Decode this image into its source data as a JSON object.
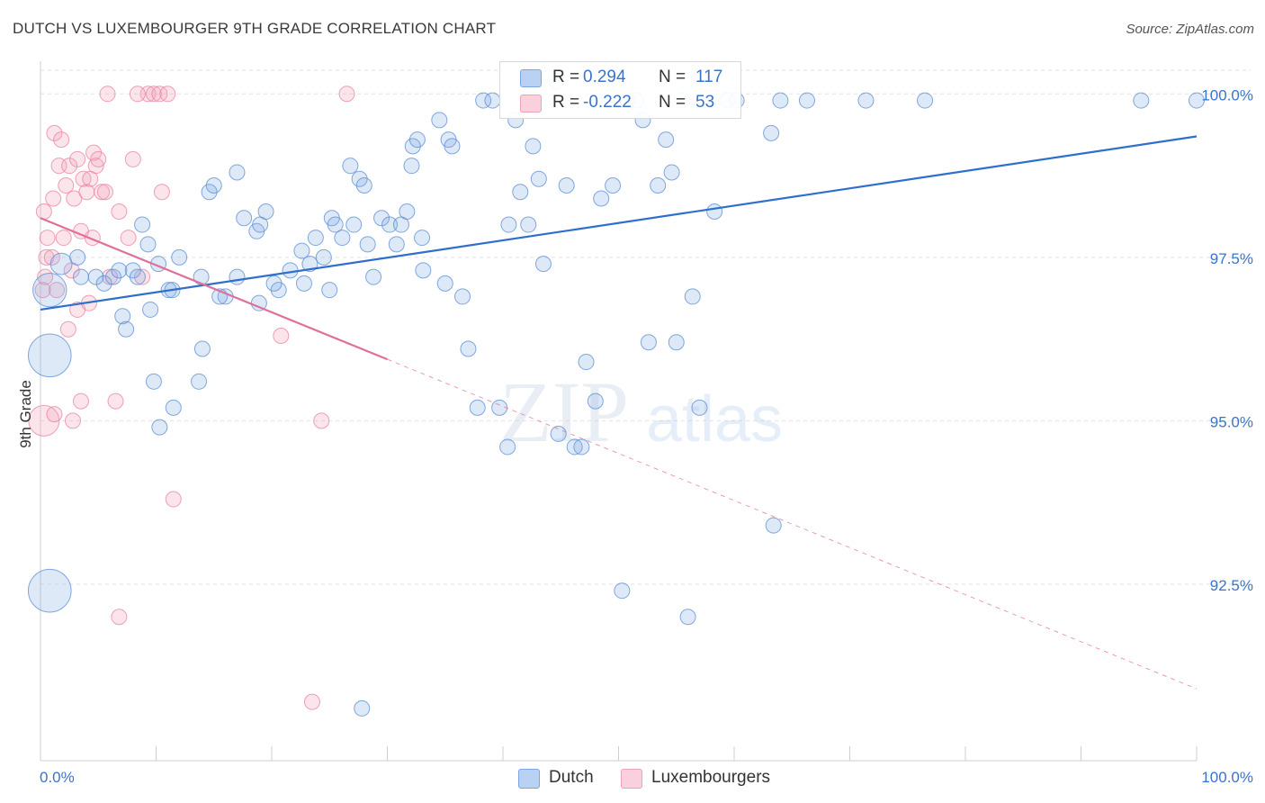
{
  "title": "DUTCH VS LUXEMBOURGER 9TH GRADE CORRELATION CHART",
  "source": "Source: ZipAtlas.com",
  "watermark": {
    "zip": "ZIP",
    "atlas": "atlas"
  },
  "legend": {
    "rows": [
      {
        "r_label": "R =",
        "r_value": "0.294",
        "n_label": "N =",
        "n_value": "117"
      },
      {
        "r_label": "R =",
        "r_value": "-0.222",
        "n_label": "N =",
        "n_value": "53"
      }
    ]
  },
  "bottom_legend": {
    "dutch": "Dutch",
    "luxembourgers": "Luxembourgers"
  },
  "colors": {
    "dutch": "#7aa7e3",
    "dutch_line": "#2f6fcc",
    "lux": "#f0a0b8",
    "lux_line": "#e0709a",
    "axis_text": "#3a74c9"
  },
  "chart_data": {
    "type": "scatter",
    "title": "DUTCH VS LUXEMBOURGER 9TH GRADE CORRELATION CHART",
    "xlabel": "",
    "ylabel": "9th Grade",
    "xlim": [
      0,
      100
    ],
    "ylim": [
      89.8,
      100.5
    ],
    "x_tick_labels": [
      "0.0%",
      "100.0%"
    ],
    "y_ticks": [
      {
        "value": 100.0,
        "label": "100.0%"
      },
      {
        "value": 97.5,
        "label": "97.5%"
      },
      {
        "value": 95.0,
        "label": "95.0%"
      },
      {
        "value": 92.5,
        "label": "92.5%"
      }
    ],
    "series": [
      {
        "name": "Dutch",
        "r": 0.294,
        "n": 117,
        "trend": {
          "x": [
            0,
            100
          ],
          "y": [
            96.7,
            99.35
          ],
          "solid_to": 100
        },
        "points": [
          [
            0.8,
            97.0,
            2.2
          ],
          [
            0.8,
            96.0,
            2.8
          ],
          [
            0.8,
            92.4,
            2.8
          ],
          [
            1.8,
            97.4,
            1.4
          ],
          [
            3.2,
            97.5,
            1
          ],
          [
            3.5,
            97.2,
            1
          ],
          [
            4.8,
            97.2,
            1
          ],
          [
            5.5,
            97.1,
            1
          ],
          [
            6.3,
            97.2,
            1
          ],
          [
            6.8,
            97.3,
            1
          ],
          [
            8.0,
            97.3,
            1
          ],
          [
            9.5,
            96.7,
            1
          ],
          [
            7.1,
            96.6,
            1
          ],
          [
            7.4,
            96.4,
            1
          ],
          [
            8.4,
            97.2,
            1
          ],
          [
            8.8,
            98.0,
            1
          ],
          [
            9.3,
            97.7,
            1
          ],
          [
            10.2,
            97.4,
            1
          ],
          [
            11.1,
            97.0,
            1
          ],
          [
            12.0,
            97.5,
            1
          ],
          [
            11.4,
            97.0,
            1
          ],
          [
            13.9,
            97.2,
            1
          ],
          [
            14.6,
            98.5,
            1
          ],
          [
            15.0,
            98.6,
            1
          ],
          [
            17.0,
            98.8,
            1
          ],
          [
            18.7,
            97.9,
            1
          ],
          [
            19.0,
            98.0,
            1
          ],
          [
            19.5,
            98.2,
            1
          ],
          [
            17.6,
            98.1,
            1
          ],
          [
            17.0,
            97.2,
            1
          ],
          [
            16.0,
            96.9,
            1
          ],
          [
            15.5,
            96.9,
            1
          ],
          [
            14.0,
            96.1,
            1
          ],
          [
            13.7,
            95.6,
            1
          ],
          [
            11.5,
            95.2,
            1
          ],
          [
            10.3,
            94.9,
            1
          ],
          [
            9.8,
            95.6,
            1
          ],
          [
            18.9,
            96.8,
            1
          ],
          [
            20.6,
            97.0,
            1
          ],
          [
            20.2,
            97.1,
            1
          ],
          [
            21.6,
            97.3,
            1
          ],
          [
            22.8,
            97.1,
            1
          ],
          [
            23.3,
            97.4,
            1
          ],
          [
            22.6,
            97.6,
            1
          ],
          [
            23.8,
            97.8,
            1
          ],
          [
            25.2,
            98.1,
            1
          ],
          [
            24.5,
            97.5,
            1
          ],
          [
            25.5,
            98.0,
            1
          ],
          [
            25.0,
            97.0,
            1
          ],
          [
            26.1,
            97.8,
            1
          ],
          [
            26.8,
            98.9,
            1
          ],
          [
            27.6,
            98.7,
            1
          ],
          [
            28.0,
            98.6,
            1
          ],
          [
            27.1,
            98.0,
            1
          ],
          [
            28.3,
            97.7,
            1
          ],
          [
            28.8,
            97.2,
            1
          ],
          [
            29.5,
            98.1,
            1
          ],
          [
            30.8,
            97.7,
            1
          ],
          [
            30.2,
            98.0,
            1
          ],
          [
            31.2,
            98.0,
            1
          ],
          [
            31.7,
            98.2,
            1
          ],
          [
            32.2,
            99.2,
            1
          ],
          [
            32.6,
            99.3,
            1
          ],
          [
            32.1,
            98.9,
            1
          ],
          [
            33.0,
            97.8,
            1
          ],
          [
            33.1,
            97.3,
            1
          ],
          [
            34.5,
            99.6,
            1
          ],
          [
            35.3,
            99.3,
            1
          ],
          [
            35.6,
            99.2,
            1
          ],
          [
            35.0,
            97.1,
            1
          ],
          [
            36.5,
            96.9,
            1
          ],
          [
            37.0,
            96.1,
            1
          ],
          [
            37.8,
            95.2,
            1
          ],
          [
            38.3,
            99.9,
            1
          ],
          [
            39.1,
            99.9,
            1
          ],
          [
            39.7,
            95.2,
            1
          ],
          [
            40.4,
            94.6,
            1
          ],
          [
            40.5,
            98.0,
            1
          ],
          [
            41.1,
            99.6,
            1
          ],
          [
            41.5,
            98.5,
            1
          ],
          [
            42.2,
            98.0,
            1
          ],
          [
            42.6,
            99.2,
            1
          ],
          [
            43.1,
            98.7,
            1
          ],
          [
            43.5,
            97.4,
            1
          ],
          [
            44.8,
            94.8,
            1
          ],
          [
            45.5,
            98.6,
            1
          ],
          [
            46.2,
            94.6,
            1
          ],
          [
            46.8,
            94.6,
            1
          ],
          [
            47.2,
            95.9,
            1
          ],
          [
            48.0,
            95.3,
            1
          ],
          [
            48.5,
            98.4,
            1
          ],
          [
            49.5,
            98.6,
            1
          ],
          [
            50.3,
            92.4,
            1
          ],
          [
            50.8,
            99.9,
            1
          ],
          [
            51.5,
            99.9,
            1
          ],
          [
            52.1,
            99.6,
            1
          ],
          [
            52.6,
            96.2,
            1
          ],
          [
            53.4,
            98.6,
            1
          ],
          [
            54.1,
            99.3,
            1
          ],
          [
            54.6,
            98.8,
            1
          ],
          [
            55.0,
            96.2,
            1
          ],
          [
            55.5,
            99.9,
            1
          ],
          [
            56.0,
            92.0,
            1
          ],
          [
            56.4,
            96.9,
            1
          ],
          [
            57.0,
            95.2,
            1
          ],
          [
            58.3,
            98.2,
            1
          ],
          [
            59.4,
            99.9,
            1
          ],
          [
            60.2,
            99.9,
            1
          ],
          [
            63.4,
            93.4,
            1
          ],
          [
            63.2,
            99.4,
            1
          ],
          [
            64.0,
            99.9,
            1
          ],
          [
            66.3,
            99.9,
            1
          ],
          [
            71.4,
            99.9,
            1
          ],
          [
            76.5,
            99.9,
            1
          ],
          [
            27.8,
            90.6,
            1
          ],
          [
            44.6,
            100.2,
            1
          ],
          [
            95.2,
            99.9,
            1
          ],
          [
            100.0,
            99.9,
            1
          ]
        ]
      },
      {
        "name": "Luxembourgers",
        "r": -0.222,
        "n": 53,
        "trend": {
          "x": [
            0,
            100
          ],
          "y": [
            98.1,
            90.9
          ],
          "solid_to": 30
        },
        "points": [
          [
            0.2,
            97.0,
            1
          ],
          [
            0.3,
            98.2,
            1
          ],
          [
            0.5,
            97.5,
            1
          ],
          [
            0.4,
            97.2,
            1
          ],
          [
            0.3,
            95.0,
            2
          ],
          [
            1.2,
            95.1,
            1
          ],
          [
            1.1,
            98.4,
            1
          ],
          [
            1.2,
            99.4,
            1
          ],
          [
            1.6,
            98.9,
            1
          ],
          [
            1.8,
            99.3,
            1
          ],
          [
            2.0,
            97.8,
            1
          ],
          [
            2.2,
            98.6,
            1
          ],
          [
            2.5,
            98.9,
            1
          ],
          [
            2.7,
            97.3,
            1
          ],
          [
            2.9,
            98.4,
            1
          ],
          [
            3.2,
            99.0,
            1
          ],
          [
            3.5,
            97.9,
            1
          ],
          [
            3.7,
            98.7,
            1
          ],
          [
            4.0,
            98.5,
            1
          ],
          [
            4.3,
            98.7,
            1
          ],
          [
            4.5,
            97.8,
            1
          ],
          [
            4.6,
            99.1,
            1
          ],
          [
            4.8,
            98.9,
            1
          ],
          [
            5.0,
            99.0,
            1
          ],
          [
            5.3,
            98.5,
            1
          ],
          [
            5.6,
            98.5,
            1
          ],
          [
            6.0,
            97.2,
            1
          ],
          [
            6.5,
            95.3,
            1
          ],
          [
            6.8,
            98.2,
            1
          ],
          [
            7.6,
            97.8,
            1
          ],
          [
            8.0,
            99.0,
            1
          ],
          [
            8.8,
            97.2,
            1
          ],
          [
            9.3,
            100.0,
            1
          ],
          [
            9.8,
            100.0,
            1
          ],
          [
            10.3,
            100.0,
            1
          ],
          [
            10.5,
            98.5,
            1
          ],
          [
            11.0,
            100.0,
            1
          ],
          [
            11.5,
            93.8,
            1
          ],
          [
            2.8,
            95.0,
            1
          ],
          [
            3.5,
            95.3,
            1
          ],
          [
            5.8,
            100.0,
            1
          ],
          [
            6.8,
            92.0,
            1
          ],
          [
            20.8,
            96.3,
            1
          ],
          [
            23.5,
            90.7,
            1
          ],
          [
            24.3,
            95.0,
            1
          ],
          [
            26.5,
            100.0,
            1
          ],
          [
            3.2,
            96.7,
            1
          ],
          [
            1.0,
            97.5,
            1
          ],
          [
            2.4,
            96.4,
            1
          ],
          [
            8.4,
            100.0,
            1
          ],
          [
            1.4,
            97.0,
            1
          ],
          [
            0.6,
            97.8,
            1
          ],
          [
            4.2,
            96.8,
            1
          ]
        ]
      }
    ]
  }
}
